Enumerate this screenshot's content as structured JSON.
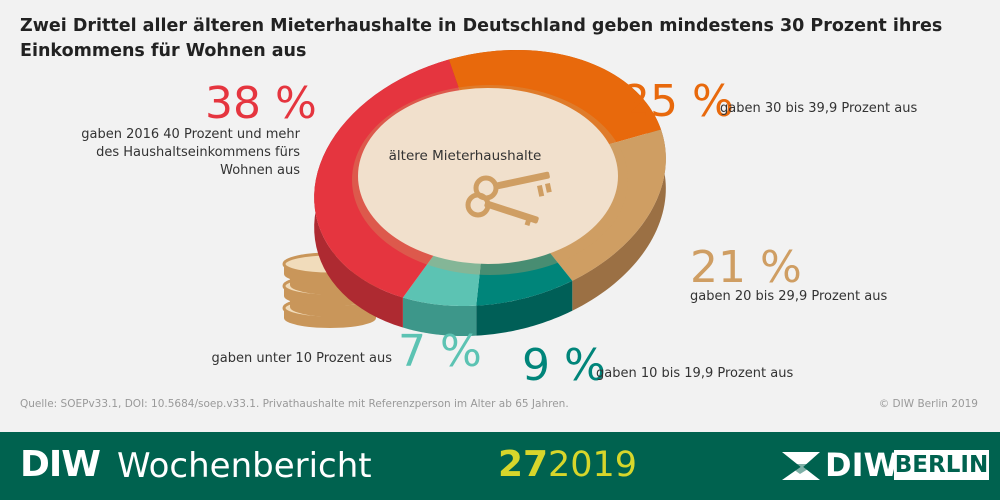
{
  "title": "Zwei Drittel aller älteren Mieterhaushalte in Deutschland geben mindestens 30 Prozent ihres Einkommens für Wohnen aus",
  "chart_data": {
    "type": "pie",
    "center_label": "ältere Mieterhaushalte",
    "slices": [
      {
        "value": 25,
        "pct_label": "25 %",
        "label": "gaben 30 bis 39,9 Prozent aus",
        "color": "#e8690c",
        "side": "#b85208"
      },
      {
        "value": 21,
        "pct_label": "21 %",
        "label": "gaben 20 bis 29,9 Prozent aus",
        "color": "#cf9e63",
        "side": "#9b7044"
      },
      {
        "value": 9,
        "pct_label": "9 %",
        "label": "gaben 10 bis 19,9 Prozent aus",
        "color": "#00857a",
        "side": "#005f57"
      },
      {
        "value": 7,
        "pct_label": "7 %",
        "label": "gaben unter 10 Prozent aus",
        "color": "#5cc3b3",
        "side": "#3d978a"
      },
      {
        "value": 38,
        "pct_label": "38 %",
        "label": "gaben 2016 40 Prozent und mehr des Haushaltseinkommens fürs Wohnen aus",
        "color": "#e5353f",
        "side": "#ae2a31"
      }
    ]
  },
  "source": "Quelle: SOEPv33.1, DOI: 10.5684/soep.v33.1. Privathaushalte mit Referenzperson im Alter ab 65 Jahren.",
  "copyright": "© DIW Berlin 2019",
  "footer": {
    "brand": "DIW",
    "publication": "Wochenbericht",
    "issue": "27",
    "year": "2019",
    "logo_diw": "DIW",
    "logo_berlin": "BERLIN"
  },
  "colors": {
    "background": "#f2f2f2",
    "footer": "#00624f",
    "issue": "#d7d62b"
  }
}
